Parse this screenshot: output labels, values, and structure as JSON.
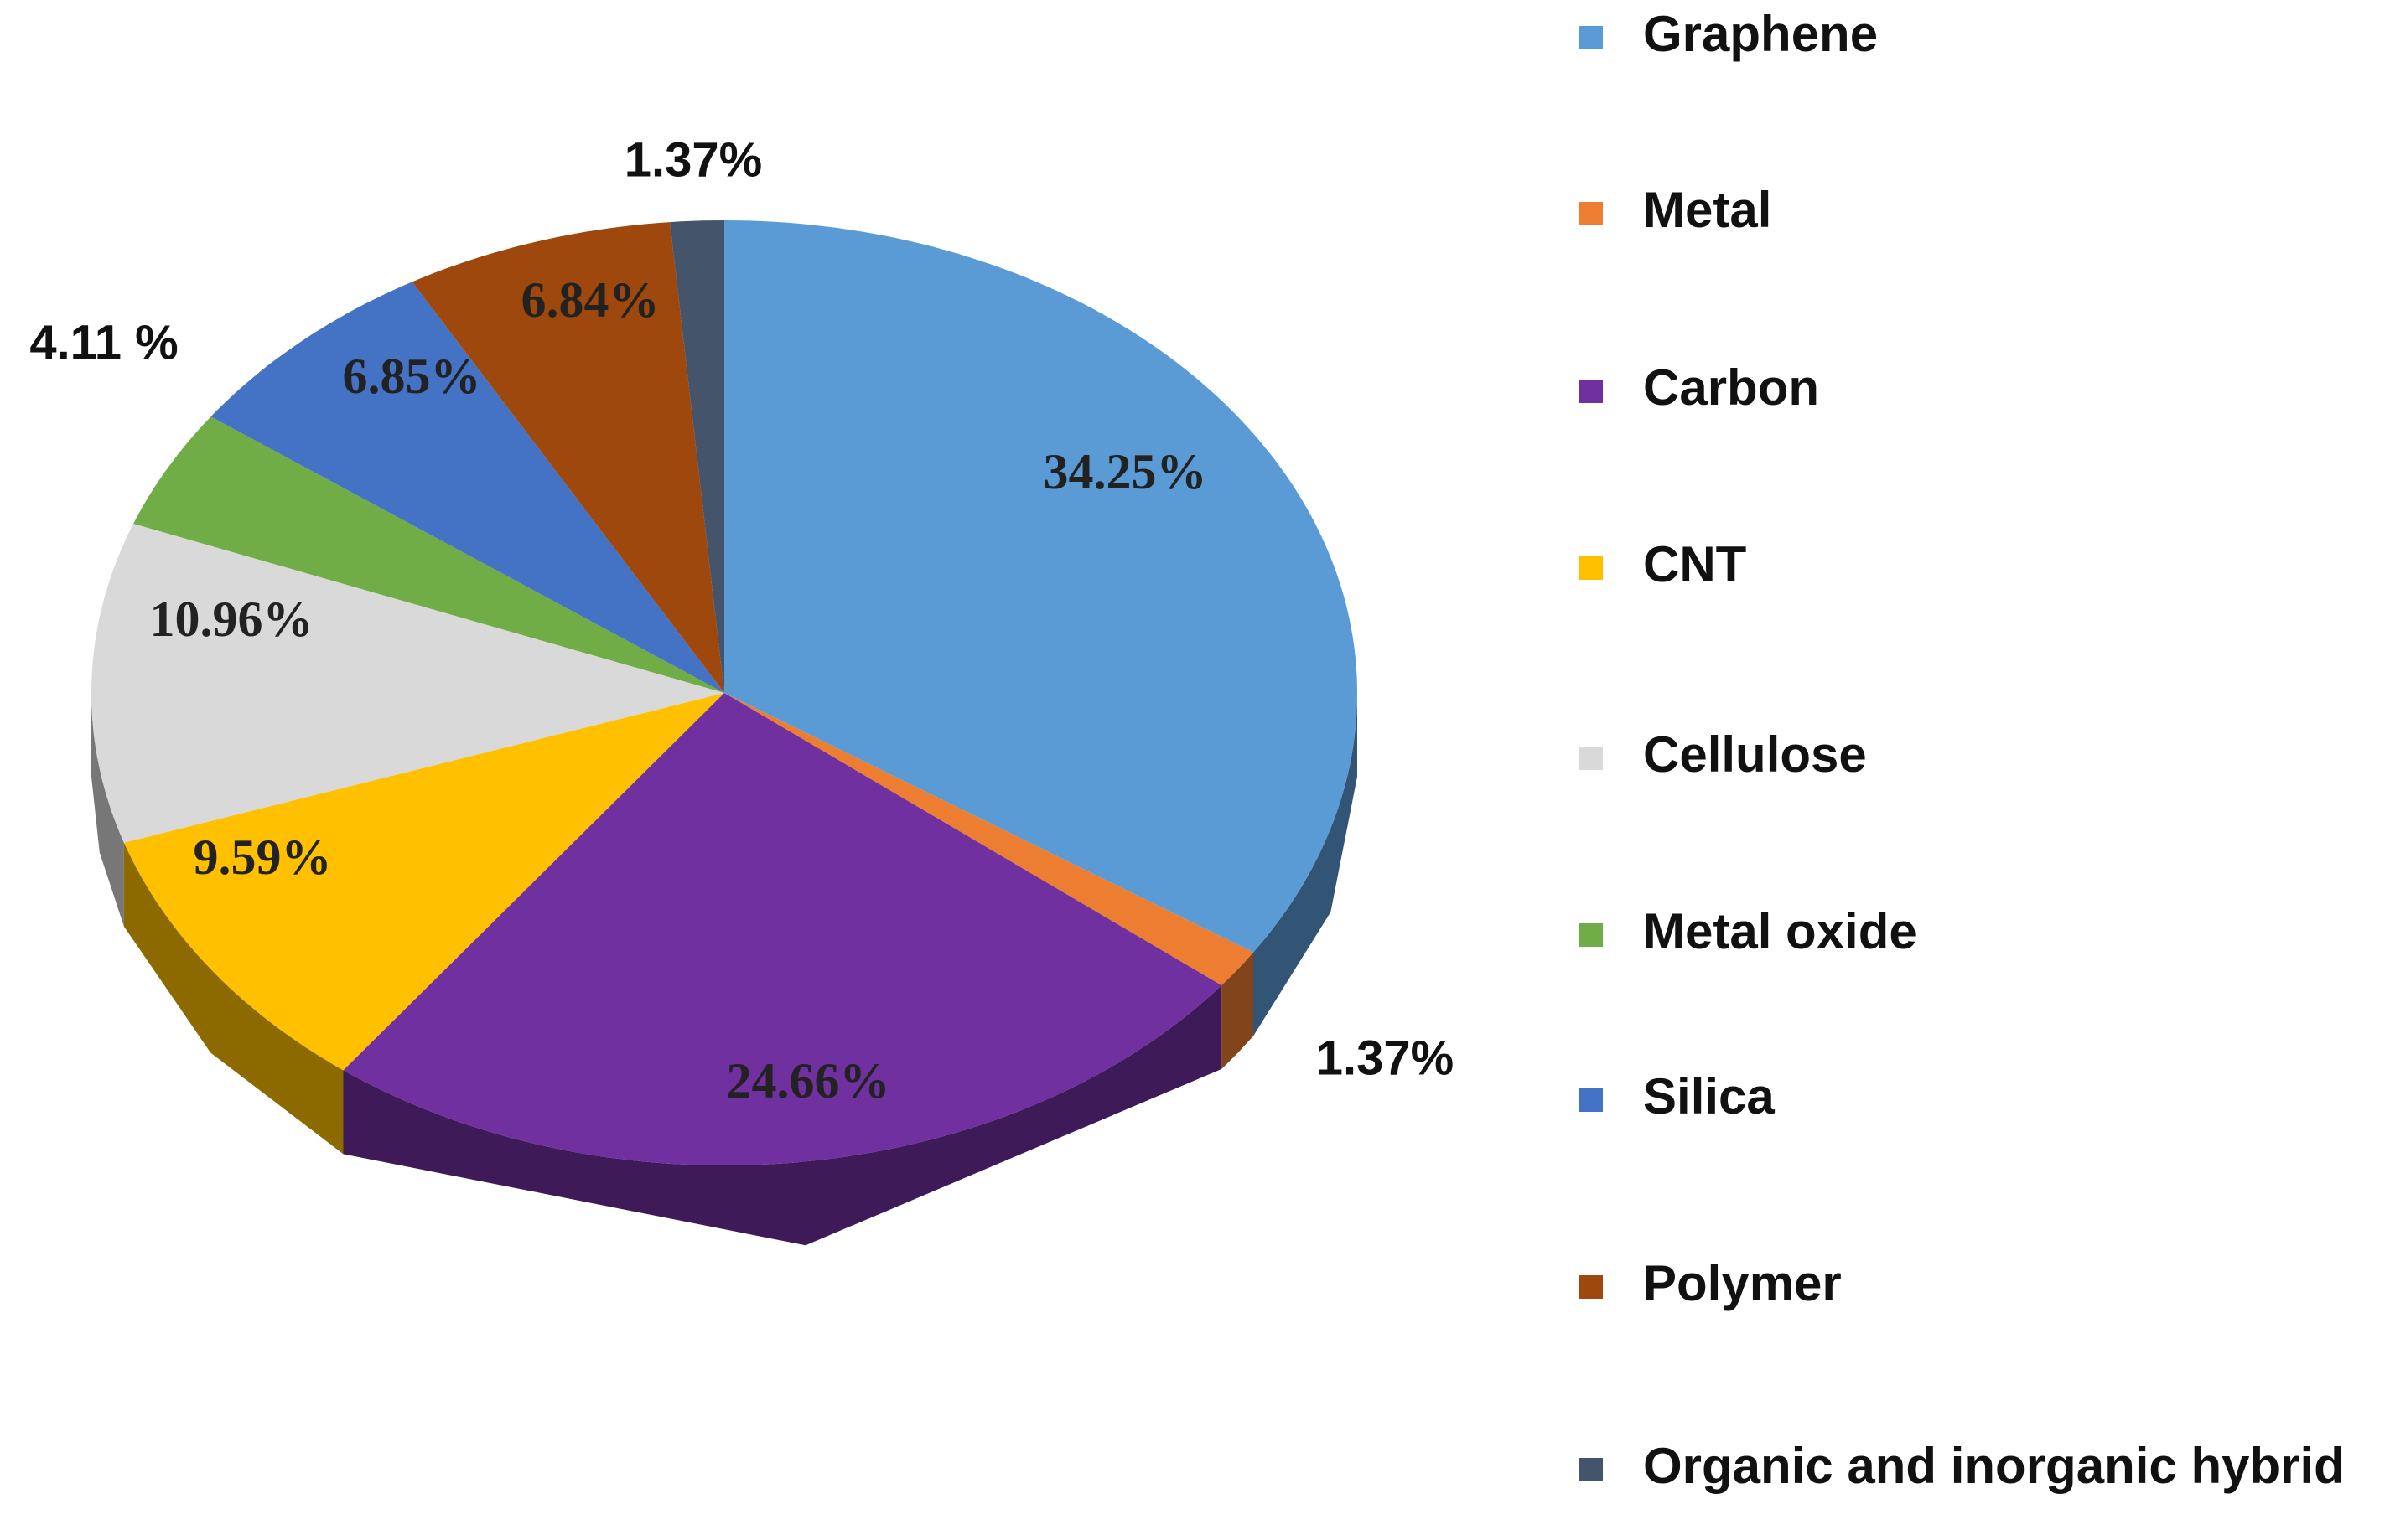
{
  "chart_data": {
    "type": "pie",
    "categories": [
      "Graphene",
      "Metal",
      "Carbon",
      "CNT",
      "Cellulose",
      "Metal oxide",
      "Silica",
      "Polymer",
      "Organic and inorganic hybrid"
    ],
    "values": [
      34.25,
      1.37,
      24.66,
      9.59,
      10.96,
      4.11,
      6.85,
      6.84,
      1.37
    ],
    "value_labels": [
      "34.25%",
      "1.37%",
      "24.66%",
      "9.59%",
      "10.96%",
      "4.11 %",
      "6.85%",
      "6.84%",
      "1.37%"
    ],
    "colors": [
      "#5b9bd5",
      "#ed7d31",
      "#7030a0",
      "#ffc000",
      "#d9d9d9",
      "#70ad47",
      "#4472c4",
      "#9e480e",
      "#44546a"
    ],
    "legend": "right"
  }
}
